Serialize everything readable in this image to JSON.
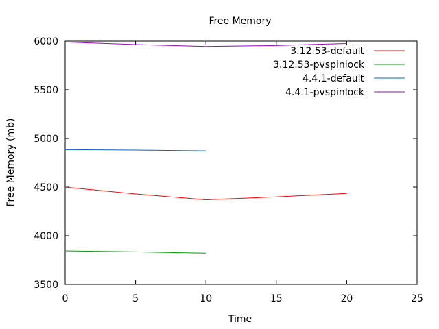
{
  "chart_data": {
    "type": "line",
    "title": "Free Memory",
    "xlabel": "Time",
    "ylabel": "Free Memory (mb)",
    "xlim": [
      0,
      25
    ],
    "ylim": [
      3500,
      6000
    ],
    "xticks": [
      0,
      5,
      10,
      15,
      20,
      25
    ],
    "yticks": [
      3500,
      4000,
      4500,
      5000,
      5500,
      6000
    ],
    "grid": false,
    "legend_position": "top-right",
    "series": [
      {
        "name": "3.12.53-default",
        "color": "#ff0000",
        "points": [
          [
            0,
            4500
          ],
          [
            5,
            4430
          ],
          [
            10,
            4370
          ],
          [
            15,
            4400
          ],
          [
            20,
            4435
          ]
        ]
      },
      {
        "name": "3.12.53-pvspinlock",
        "color": "#00a000",
        "points": [
          [
            0,
            3845
          ],
          [
            5,
            3835
          ],
          [
            10,
            3822
          ]
        ]
      },
      {
        "name": "4.4.1-default",
        "color": "#0066cc",
        "points": [
          [
            0,
            4885
          ],
          [
            5,
            4880
          ],
          [
            10,
            4872
          ]
        ]
      },
      {
        "name": "4.4.1-pvspinlock",
        "color": "#a000cc",
        "points": [
          [
            0,
            5990
          ],
          [
            5,
            5965
          ],
          [
            10,
            5945
          ],
          [
            15,
            5955
          ],
          [
            20,
            5975
          ]
        ]
      }
    ]
  }
}
